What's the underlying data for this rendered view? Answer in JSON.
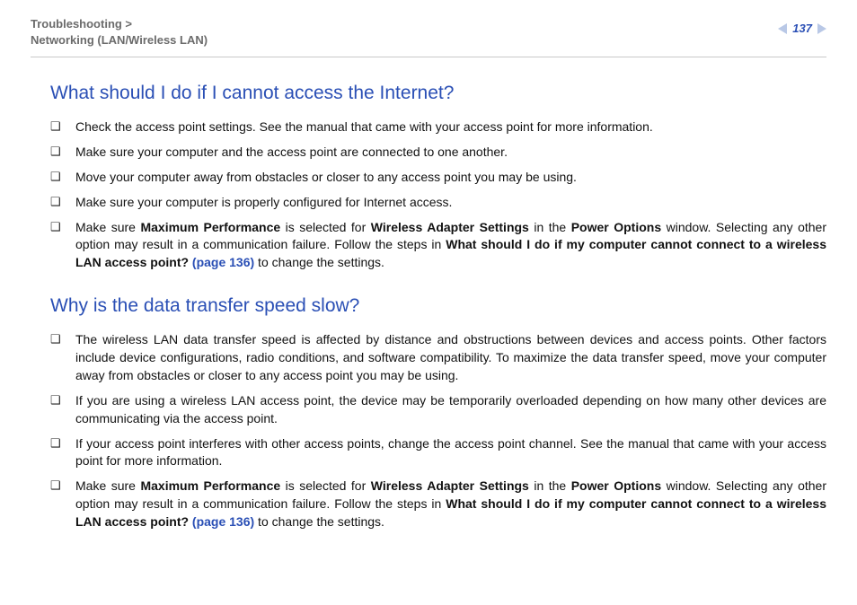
{
  "header": {
    "breadcrumb_line1": "Troubleshooting >",
    "breadcrumb_line2": "Networking (LAN/Wireless LAN)",
    "page_number": "137"
  },
  "sections": [
    {
      "heading": "What should I do if I cannot access the Internet?",
      "items": [
        {
          "text": "Check the access point settings. See the manual that came with your access point for more information."
        },
        {
          "text": "Make sure your computer and the access point are connected to one another."
        },
        {
          "text": "Move your computer away from obstacles or closer to any access point you may be using."
        },
        {
          "text": "Make sure your computer is properly configured for Internet access."
        },
        {
          "pre": "Make sure ",
          "b1": "Maximum Performance",
          "mid1": " is selected for ",
          "b2": "Wireless Adapter Settings",
          "mid2": " in the ",
          "b3": "Power Options",
          "mid3": " window. Selecting any other option may result in a communication failure. Follow the steps in ",
          "b4": "What should I do if my computer cannot connect to a wireless LAN access point? ",
          "xref": "(page 136)",
          "post": " to change the settings."
        }
      ]
    },
    {
      "heading": "Why is the data transfer speed slow?",
      "items": [
        {
          "text": "The wireless LAN data transfer speed is affected by distance and obstructions between devices and access points. Other factors include device configurations, radio conditions, and software compatibility. To maximize the data transfer speed, move your computer away from obstacles or closer to any access point you may be using."
        },
        {
          "text": "If you are using a wireless LAN access point, the device may be temporarily overloaded depending on how many other devices are communicating via the access point."
        },
        {
          "text": "If your access point interferes with other access points, change the access point channel. See the manual that came with your access point for more information."
        },
        {
          "pre": "Make sure ",
          "b1": "Maximum Performance",
          "mid1": " is selected for ",
          "b2": "Wireless Adapter Settings",
          "mid2": " in the ",
          "b3": "Power Options",
          "mid3": " window. Selecting any other option may result in a communication failure. Follow the steps in ",
          "b4": "What should I do if my computer cannot connect to a wireless LAN access point? ",
          "xref": "(page 136)",
          "post": " to change the settings."
        }
      ]
    }
  ],
  "bullet_glyph": "❑"
}
